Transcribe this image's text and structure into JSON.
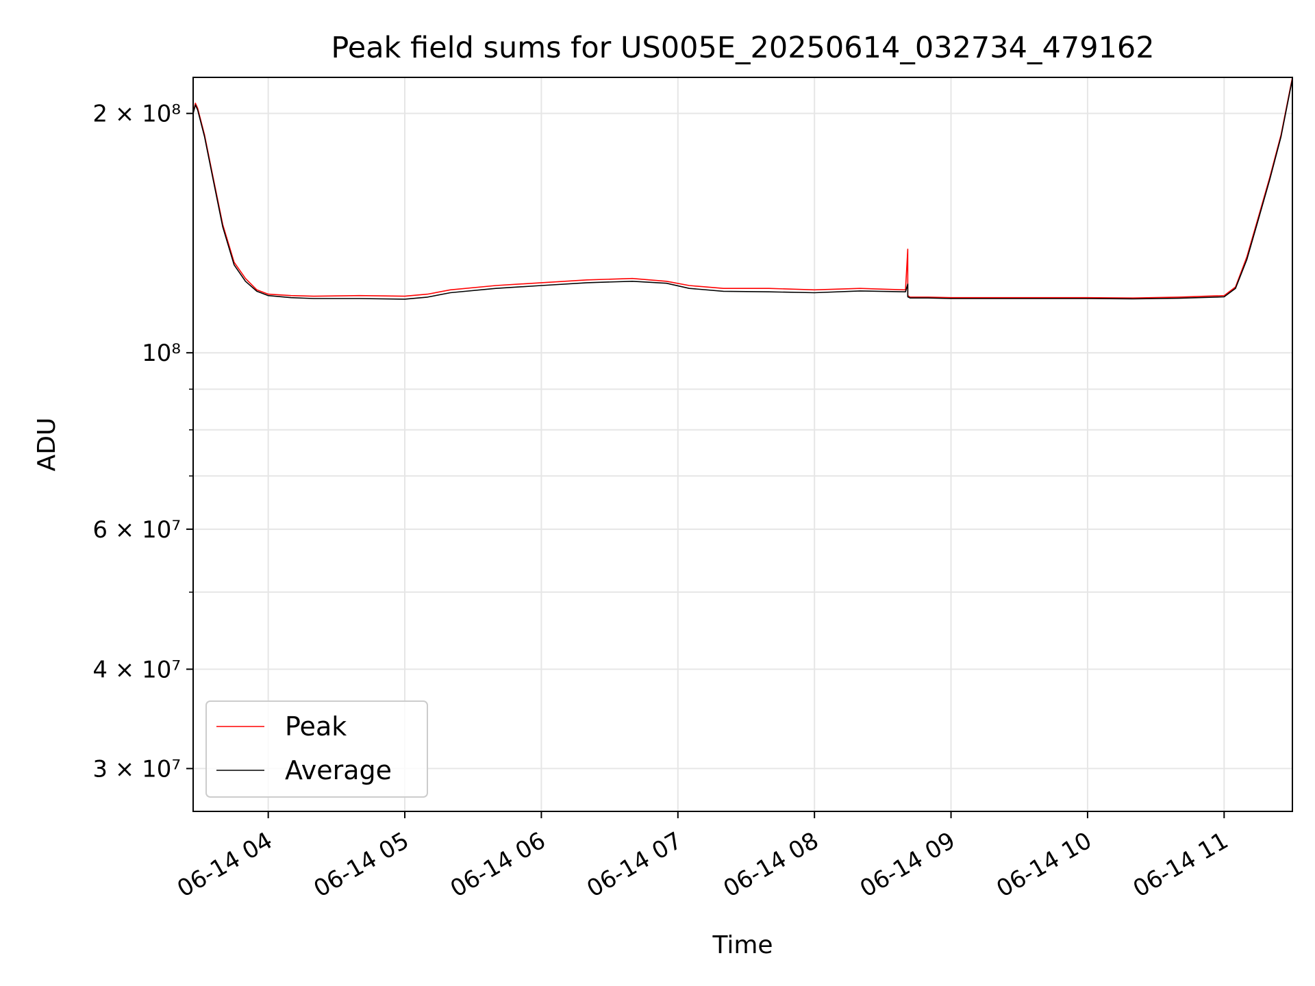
{
  "chart_data": {
    "type": "line",
    "title": "Peak field sums for US005E_20250614_032734_479162",
    "xlabel": "Time",
    "ylabel": "ADU",
    "yscale": "log",
    "xlim": [
      "06-14 03:27",
      "06-14 11:30"
    ],
    "ylim": [
      26500000,
      222000000
    ],
    "grid": true,
    "legend_position": "lower-left",
    "x_ticks": [
      "06-14 04",
      "06-14 05",
      "06-14 06",
      "06-14 07",
      "06-14 08",
      "06-14 09",
      "06-14 10",
      "06-14 11"
    ],
    "y_ticks": [
      {
        "value": 200000000,
        "label": "2 × 10⁸"
      },
      {
        "value": 100000000,
        "label": "10⁸"
      },
      {
        "value": 60000000,
        "label": "6 × 10⁷"
      },
      {
        "value": 40000000,
        "label": "4 × 10⁷"
      },
      {
        "value": 30000000,
        "label": "3 × 10⁷"
      }
    ],
    "y_minor_ticks": [
      90000000,
      80000000,
      70000000,
      50000000
    ],
    "series": [
      {
        "name": "Peak",
        "color": "#ff0000",
        "x": [
          "03:27",
          "03:27",
          "03:28",
          "03:29",
          "03:32",
          "03:36",
          "03:40",
          "03:45",
          "03:50",
          "03:55",
          "04:00",
          "04:10",
          "04:20",
          "04:40",
          "05:00",
          "05:10",
          "05:20",
          "05:40",
          "06:00",
          "06:20",
          "06:40",
          "06:55",
          "07:05",
          "07:20",
          "07:40",
          "08:00",
          "08:20",
          "08:40",
          "08:41",
          "08:41",
          "08:42",
          "08:50",
          "09:00",
          "09:20",
          "09:40",
          "10:00",
          "10:20",
          "10:40",
          "11:00",
          "11:05",
          "11:10",
          "11:15",
          "11:20",
          "11:25",
          "11:30"
        ],
        "y": [
          118000000,
          200000000,
          206000000,
          203000000,
          188000000,
          165000000,
          145000000,
          130000000,
          124000000,
          120000000,
          118500000,
          118000000,
          117800000,
          118000000,
          117800000,
          118500000,
          120000000,
          121500000,
          122500000,
          123500000,
          124000000,
          123000000,
          121500000,
          120500000,
          120500000,
          120000000,
          120500000,
          120000000,
          135000000,
          118000000,
          117500000,
          117500000,
          117300000,
          117300000,
          117300000,
          117300000,
          117200000,
          117500000,
          118000000,
          121000000,
          132000000,
          148000000,
          166000000,
          188000000,
          222000000
        ]
      },
      {
        "name": "Average",
        "color": "#000000",
        "x": [
          "03:27",
          "03:27",
          "03:28",
          "03:29",
          "03:32",
          "03:36",
          "03:40",
          "03:45",
          "03:50",
          "03:55",
          "04:00",
          "04:10",
          "04:20",
          "04:40",
          "05:00",
          "05:10",
          "05:20",
          "05:40",
          "06:00",
          "06:20",
          "06:40",
          "06:55",
          "07:05",
          "07:20",
          "07:40",
          "08:00",
          "08:20",
          "08:40",
          "08:41",
          "08:41",
          "08:42",
          "08:50",
          "09:00",
          "09:20",
          "09:40",
          "10:00",
          "10:20",
          "10:40",
          "11:00",
          "11:05",
          "11:10",
          "11:15",
          "11:20",
          "11:25",
          "11:30"
        ],
        "y": [
          118000000,
          200000000,
          205000000,
          202000000,
          187000000,
          164000000,
          144000000,
          129000000,
          123000000,
          119500000,
          118000000,
          117300000,
          117000000,
          117000000,
          116800000,
          117500000,
          119000000,
          120500000,
          121500000,
          122500000,
          123000000,
          122300000,
          120500000,
          119500000,
          119300000,
          119000000,
          119600000,
          119300000,
          122000000,
          117600000,
          117200000,
          117200000,
          117000000,
          117000000,
          117000000,
          117000000,
          116900000,
          117100000,
          117600000,
          120500000,
          131000000,
          147000000,
          165000000,
          187000000,
          221000000
        ]
      }
    ]
  }
}
